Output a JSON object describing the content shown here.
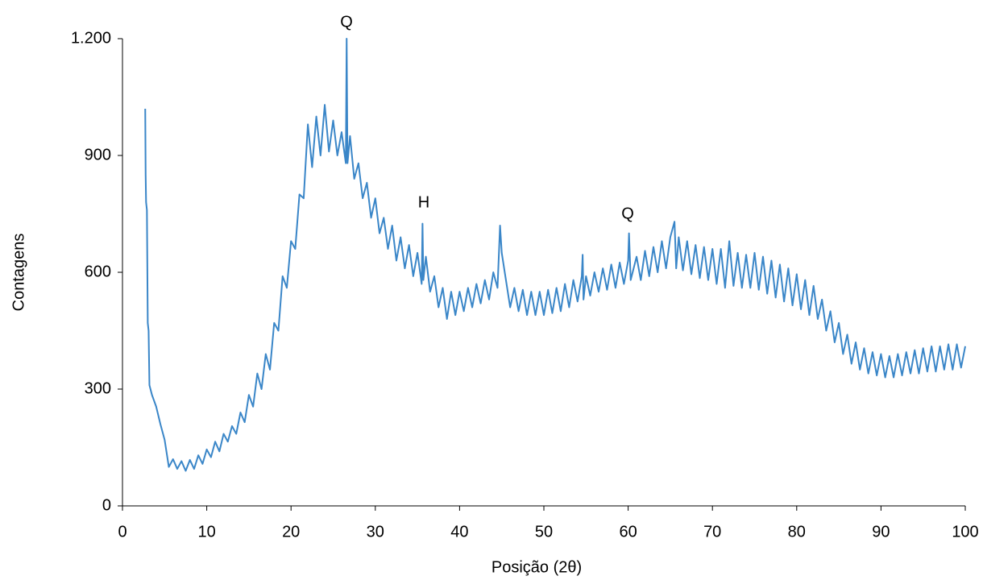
{
  "chart_data": {
    "type": "line",
    "x_label": "Posição (2θ)",
    "y_label": "Contagens",
    "annotations": [
      "Q",
      "H",
      "Q"
    ],
    "color": "#3a86c8",
    "xlim": [
      0,
      100
    ],
    "xticks": [
      0,
      10,
      20,
      30,
      40,
      50,
      60,
      70,
      80,
      90,
      100
    ],
    "ylim": [
      0,
      1200
    ],
    "yticks": [
      0,
      300,
      600,
      900,
      {
        "value": 1200,
        "label": "1.200"
      }
    ],
    "grid": false,
    "x": [
      2.7,
      2.75,
      2.8,
      2.9,
      3.0,
      3.1,
      3.2,
      3.5,
      4,
      4.5,
      5,
      5.5,
      6,
      6.5,
      7,
      7.5,
      8,
      8.5,
      9,
      9.5,
      10,
      10.5,
      11,
      11.5,
      12,
      12.5,
      13,
      13.5,
      14,
      14.5,
      15,
      15.5,
      16,
      16.5,
      17,
      17.5,
      18,
      18.5,
      19,
      19.5,
      20,
      20.5,
      21,
      21.5,
      22,
      22.5,
      23,
      23.5,
      24,
      24.5,
      25,
      25.5,
      26,
      26.5,
      26.6,
      26.7,
      27,
      27.5,
      28,
      28.5,
      29,
      29.5,
      30,
      30.5,
      31,
      31.5,
      32,
      32.5,
      33,
      33.5,
      34,
      34.5,
      35,
      35.5,
      35.6,
      35.7,
      36,
      36.5,
      37,
      37.5,
      38,
      38.5,
      39,
      39.5,
      40,
      40.5,
      41,
      41.5,
      42,
      42.5,
      43,
      43.5,
      44,
      44.5,
      44.8,
      45,
      45.5,
      46,
      46.5,
      47,
      47.5,
      48,
      48.5,
      49,
      49.5,
      50,
      50.5,
      51,
      51.5,
      52,
      52.5,
      53,
      53.5,
      54,
      54.5,
      54.6,
      54.7,
      55,
      55.5,
      56,
      56.5,
      57,
      57.5,
      58,
      58.5,
      59,
      59.5,
      60,
      60.1,
      60.3,
      61,
      61.5,
      62,
      62.5,
      63,
      63.5,
      64,
      64.5,
      65,
      65.5,
      65.7,
      66,
      66.5,
      67,
      67.5,
      68,
      68.5,
      69,
      69.5,
      70,
      70.5,
      71,
      71.5,
      72,
      72.5,
      73,
      73.5,
      74,
      74.5,
      75,
      75.5,
      76,
      76.5,
      77,
      77.5,
      78,
      78.5,
      79,
      79.5,
      80,
      80.5,
      81,
      81.5,
      82,
      82.5,
      83,
      83.5,
      84,
      84.5,
      85,
      85.5,
      86,
      86.5,
      87,
      87.5,
      88,
      88.5,
      89,
      89.5,
      90,
      90.5,
      91,
      91.5,
      92,
      92.5,
      93,
      93.5,
      94,
      94.5,
      95,
      95.5,
      96,
      96.5,
      97,
      97.5,
      98,
      98.5,
      99,
      99.5,
      100
    ],
    "values": [
      1020,
      850,
      780,
      760,
      470,
      450,
      310,
      285,
      255,
      210,
      170,
      100,
      120,
      95,
      115,
      90,
      118,
      95,
      130,
      108,
      145,
      125,
      165,
      140,
      185,
      165,
      205,
      185,
      240,
      215,
      285,
      255,
      340,
      300,
      390,
      350,
      470,
      450,
      590,
      560,
      680,
      660,
      800,
      790,
      980,
      870,
      1000,
      900,
      1030,
      910,
      990,
      900,
      960,
      880,
      1200,
      880,
      950,
      840,
      880,
      790,
      830,
      740,
      790,
      700,
      740,
      660,
      720,
      630,
      690,
      610,
      670,
      590,
      650,
      570,
      725,
      580,
      640,
      550,
      590,
      510,
      560,
      480,
      550,
      490,
      550,
      500,
      560,
      510,
      570,
      520,
      580,
      530,
      600,
      560,
      720,
      650,
      580,
      510,
      560,
      500,
      555,
      490,
      550,
      490,
      550,
      490,
      555,
      495,
      560,
      500,
      570,
      510,
      580,
      525,
      590,
      645,
      530,
      590,
      540,
      600,
      550,
      610,
      555,
      620,
      560,
      625,
      570,
      630,
      700,
      580,
      640,
      580,
      655,
      590,
      665,
      600,
      680,
      610,
      690,
      730,
      610,
      690,
      605,
      680,
      595,
      670,
      585,
      665,
      580,
      660,
      570,
      660,
      560,
      680,
      565,
      650,
      560,
      645,
      560,
      650,
      555,
      640,
      545,
      630,
      535,
      620,
      525,
      610,
      515,
      595,
      505,
      580,
      490,
      565,
      480,
      530,
      450,
      500,
      420,
      470,
      390,
      440,
      365,
      420,
      350,
      405,
      340,
      395,
      335,
      390,
      330,
      385,
      330,
      390,
      335,
      395,
      340,
      400,
      340,
      405,
      345,
      410,
      345,
      410,
      350,
      415,
      350,
      415,
      355,
      410
    ]
  }
}
